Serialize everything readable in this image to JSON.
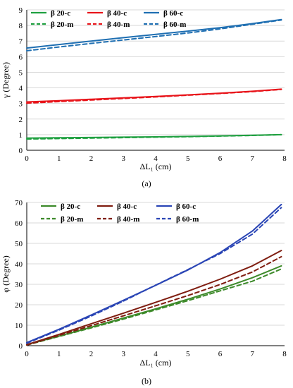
{
  "chart_data": [
    {
      "type": "line",
      "caption": "(a)",
      "xlabel": "ΔL₁ (cm)",
      "ylabel": "γ (Degree)",
      "xlim": [
        0,
        8
      ],
      "ylim": [
        0,
        9
      ],
      "xticks": [
        "0",
        "1",
        "2",
        "3",
        "4",
        "5",
        "6",
        "7",
        "8"
      ],
      "yticks": [
        "0",
        "1",
        "2",
        "3",
        "4",
        "5",
        "6",
        "7",
        "8",
        "9"
      ],
      "grid": "horizontal",
      "legend": "top",
      "series": [
        {
          "name": "β 20-c",
          "color": "#1fa040",
          "dash": "solid",
          "points": [
            [
              0,
              0.78
            ],
            [
              1,
              0.8
            ],
            [
              2,
              0.82
            ],
            [
              3,
              0.84
            ],
            [
              4,
              0.86
            ],
            [
              5,
              0.89
            ],
            [
              6,
              0.92
            ],
            [
              7,
              0.96
            ],
            [
              7.9,
              1.0
            ]
          ]
        },
        {
          "name": "β 40-c",
          "color": "#e8141a",
          "dash": "solid",
          "points": [
            [
              0,
              3.1
            ],
            [
              1,
              3.18
            ],
            [
              2,
              3.27
            ],
            [
              3,
              3.36
            ],
            [
              4,
              3.45
            ],
            [
              5,
              3.55
            ],
            [
              6,
              3.66
            ],
            [
              7,
              3.78
            ],
            [
              7.9,
              3.92
            ]
          ]
        },
        {
          "name": "β 60-c",
          "color": "#1f6fb2",
          "dash": "solid",
          "points": [
            [
              0,
              6.55
            ],
            [
              1,
              6.78
            ],
            [
              2,
              7.0
            ],
            [
              3,
              7.22
            ],
            [
              4,
              7.43
            ],
            [
              5,
              7.64
            ],
            [
              6,
              7.86
            ],
            [
              7,
              8.12
            ],
            [
              7.9,
              8.38
            ]
          ]
        },
        {
          "name": "β 20-m",
          "color": "#1fa040",
          "dash": "dashed",
          "points": [
            [
              0,
              0.72
            ],
            [
              1,
              0.75
            ],
            [
              2,
              0.78
            ],
            [
              3,
              0.81
            ],
            [
              4,
              0.84
            ],
            [
              5,
              0.87
            ],
            [
              6,
              0.91
            ],
            [
              7,
              0.95
            ],
            [
              7.9,
              1.0
            ]
          ]
        },
        {
          "name": "β 40-m",
          "color": "#e8141a",
          "dash": "dashed",
          "points": [
            [
              0,
              3.02
            ],
            [
              1,
              3.12
            ],
            [
              2,
              3.22
            ],
            [
              3,
              3.32
            ],
            [
              4,
              3.42
            ],
            [
              5,
              3.53
            ],
            [
              6,
              3.64
            ],
            [
              7,
              3.76
            ],
            [
              7.9,
              3.9
            ]
          ]
        },
        {
          "name": "β 60-m",
          "color": "#1f6fb2",
          "dash": "dashed",
          "points": [
            [
              0,
              6.38
            ],
            [
              1,
              6.62
            ],
            [
              2,
              6.85
            ],
            [
              3,
              7.07
            ],
            [
              4,
              7.29
            ],
            [
              5,
              7.52
            ],
            [
              6,
              7.78
            ],
            [
              7,
              8.08
            ],
            [
              7.9,
              8.35
            ]
          ]
        }
      ]
    },
    {
      "type": "line",
      "caption": "(b)",
      "xlabel": "ΔL₁ (cm)",
      "ylabel": "φ (Degree)",
      "xlim": [
        0,
        8
      ],
      "ylim": [
        0,
        70
      ],
      "xticks": [
        "0",
        "1",
        "2",
        "3",
        "4",
        "5",
        "6",
        "7",
        "8"
      ],
      "yticks": [
        "0",
        "10",
        "20",
        "30",
        "40",
        "50",
        "60",
        "70"
      ],
      "grid": "horizontal",
      "legend": "top",
      "series": [
        {
          "name": "β 20-c",
          "color": "#3d8a2a",
          "dash": "solid",
          "points": [
            [
              0,
              0.5
            ],
            [
              1,
              4.7
            ],
            [
              2,
              9.0
            ],
            [
              3,
              13.5
            ],
            [
              4,
              18.0
            ],
            [
              5,
              22.7
            ],
            [
              6,
              27.7
            ],
            [
              7,
              33.2
            ],
            [
              7.9,
              39.0
            ]
          ]
        },
        {
          "name": "β 40-c",
          "color": "#7f1d10",
          "dash": "solid",
          "points": [
            [
              0,
              0.5
            ],
            [
              1,
              5.5
            ],
            [
              2,
              10.7
            ],
            [
              3,
              15.9
            ],
            [
              4,
              21.2
            ],
            [
              5,
              26.6
            ],
            [
              6,
              32.5
            ],
            [
              7,
              39.0
            ],
            [
              7.9,
              46.5
            ]
          ]
        },
        {
          "name": "β 60-c",
          "color": "#2a45b5",
          "dash": "solid",
          "points": [
            [
              0,
              1.5
            ],
            [
              1,
              8.0
            ],
            [
              2,
              15.0
            ],
            [
              3,
              22.2
            ],
            [
              4,
              29.5
            ],
            [
              5,
              37.0
            ],
            [
              6,
              45.5
            ],
            [
              7,
              56.0
            ],
            [
              7.9,
              69.0
            ]
          ]
        },
        {
          "name": "β 20-m",
          "color": "#3d8a2a",
          "dash": "dashed",
          "points": [
            [
              0,
              0.3
            ],
            [
              1,
              4.5
            ],
            [
              2,
              8.7
            ],
            [
              3,
              13.0
            ],
            [
              4,
              17.5
            ],
            [
              5,
              22.0
            ],
            [
              6,
              26.8
            ],
            [
              7,
              31.5
            ],
            [
              7.9,
              37.5
            ]
          ]
        },
        {
          "name": "β 40-m",
          "color": "#7f1d10",
          "dash": "dashed",
          "points": [
            [
              0,
              0.3
            ],
            [
              1,
              5.0
            ],
            [
              2,
              9.8
            ],
            [
              3,
              14.6
            ],
            [
              4,
              19.5
            ],
            [
              5,
              24.5
            ],
            [
              6,
              29.9
            ],
            [
              7,
              36.0
            ],
            [
              7.9,
              43.5
            ]
          ]
        },
        {
          "name": "β 60-m",
          "color": "#2a45b5",
          "dash": "dashed",
          "points": [
            [
              0,
              1.2
            ],
            [
              1,
              7.6
            ],
            [
              2,
              14.5
            ],
            [
              3,
              21.8
            ],
            [
              4,
              29.6
            ],
            [
              5,
              37.2
            ],
            [
              6,
              45.0
            ],
            [
              7,
              54.5
            ],
            [
              7.9,
              67.5
            ]
          ]
        }
      ]
    }
  ]
}
